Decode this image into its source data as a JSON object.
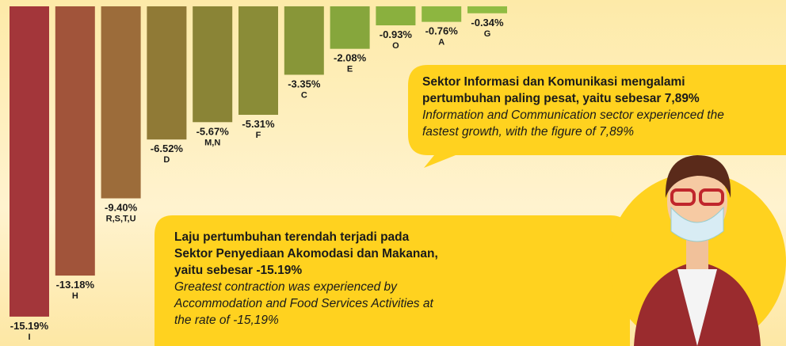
{
  "chart_data": {
    "type": "bar",
    "categories": [
      "I",
      "H",
      "R,S,T,U",
      "D",
      "M,N",
      "F",
      "C",
      "E",
      "O",
      "A",
      "G"
    ],
    "values": [
      -15.19,
      -13.18,
      -9.4,
      -6.52,
      -5.67,
      -5.31,
      -3.35,
      -2.08,
      -0.93,
      -0.76,
      -0.34
    ],
    "value_labels": [
      "-15.19%",
      "-13.18%",
      "-9.40%",
      "-6.52%",
      "-5.67%",
      "-5.31%",
      "-3.35%",
      "-2.08%",
      "-0.93%",
      "-0.76%",
      "-0.34%"
    ],
    "colors": [
      "#a3363a",
      "#a1543a",
      "#9c6c3a",
      "#907a36",
      "#8a8436",
      "#8a8c37",
      "#889638",
      "#86a63c",
      "#8ab03e",
      "#8db640",
      "#90bc43"
    ],
    "annotations": [
      {
        "bold": [
          "Sektor Informasi dan Komunikasi mengalami",
          "pertumbuhan paling pesat, yaitu sebesar 7,89%"
        ],
        "italic": [
          "Information and Communication sector experienced the",
          "fastest growth, with the figure of 7,89%"
        ]
      },
      {
        "bold": [
          "Laju pertumbuhan terendah terjadi pada",
          "Sektor Penyediaan Akomodasi dan Makanan,",
          "yaitu sebesar -15.19%"
        ],
        "italic": [
          "Greatest contraction was experienced by",
          "Accommodation and Food Services Activities at",
          "the rate of -15,19%"
        ]
      }
    ]
  }
}
